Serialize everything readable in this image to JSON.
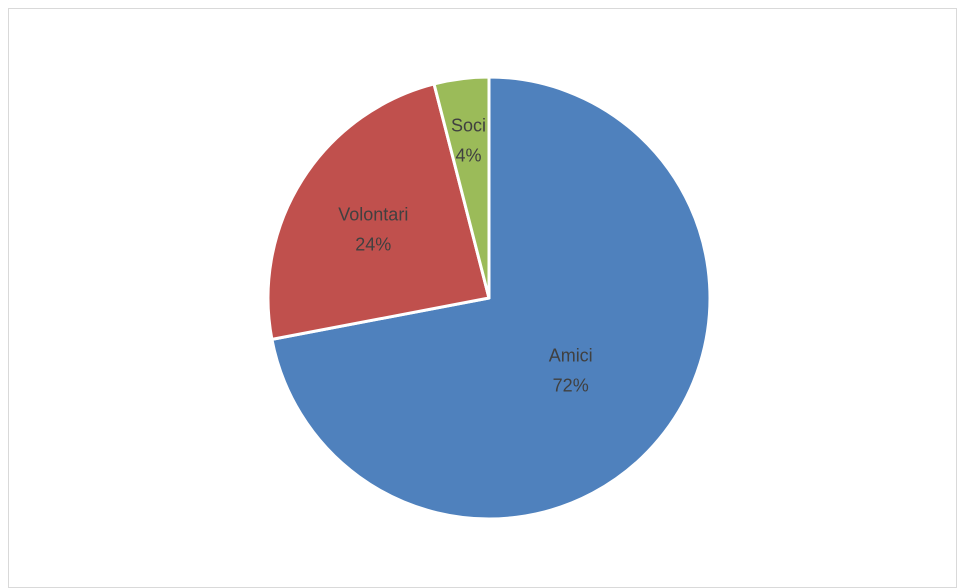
{
  "chart_data": {
    "type": "pie",
    "title": "",
    "start_angle_deg": 0,
    "direction": "clockwise",
    "slices": [
      {
        "name": "Amici",
        "value": 72,
        "label": "72%",
        "color": "#4f81bd"
      },
      {
        "name": "Volontari",
        "value": 24,
        "label": "24%",
        "color": "#c0504d"
      },
      {
        "name": "Soci",
        "value": 4,
        "label": "4%",
        "color": "#9bbb59"
      }
    ],
    "legend": "none",
    "data_labels": "category and percentage, inside slices"
  }
}
